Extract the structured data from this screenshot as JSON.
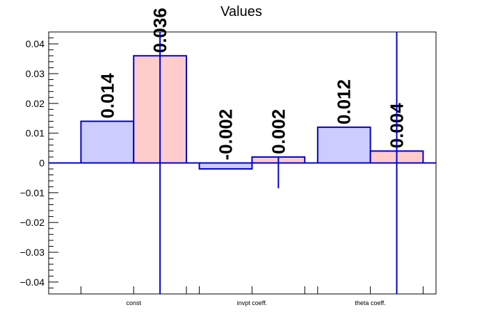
{
  "chart_data": {
    "type": "bar",
    "title": "Values",
    "xlabel": "",
    "ylabel": "",
    "categories": [
      "const",
      "invpt coeff.",
      "theta coeff."
    ],
    "ylim": [
      -0.044,
      0.044
    ],
    "yticks": [
      -0.04,
      -0.03,
      -0.02,
      -0.01,
      0,
      0.01,
      0.02,
      0.03,
      0.04
    ],
    "ytick_labels": [
      "−0.04",
      "−0.03",
      "−0.02",
      "−0.01",
      "0",
      "0.01",
      "0.02",
      "0.03",
      "0.04"
    ],
    "grid": false,
    "series": [
      {
        "values": [
          0.014,
          -0.002,
          0.012
        ],
        "labels": [
          "0.014",
          "-0.002",
          "0.012"
        ],
        "fill": "#ccccff",
        "stroke": "#0000cc"
      },
      {
        "values": [
          0.036,
          0.002,
          0.004
        ],
        "labels": [
          "0.036",
          "0.002",
          "0.004"
        ],
        "fill": "#ffcccc",
        "stroke": "#0000cc",
        "error_low": [
          -0.044,
          -0.0085,
          -0.044
        ],
        "error_high": [
          0.044,
          0.002,
          0.044
        ]
      }
    ],
    "zero_line": true
  }
}
